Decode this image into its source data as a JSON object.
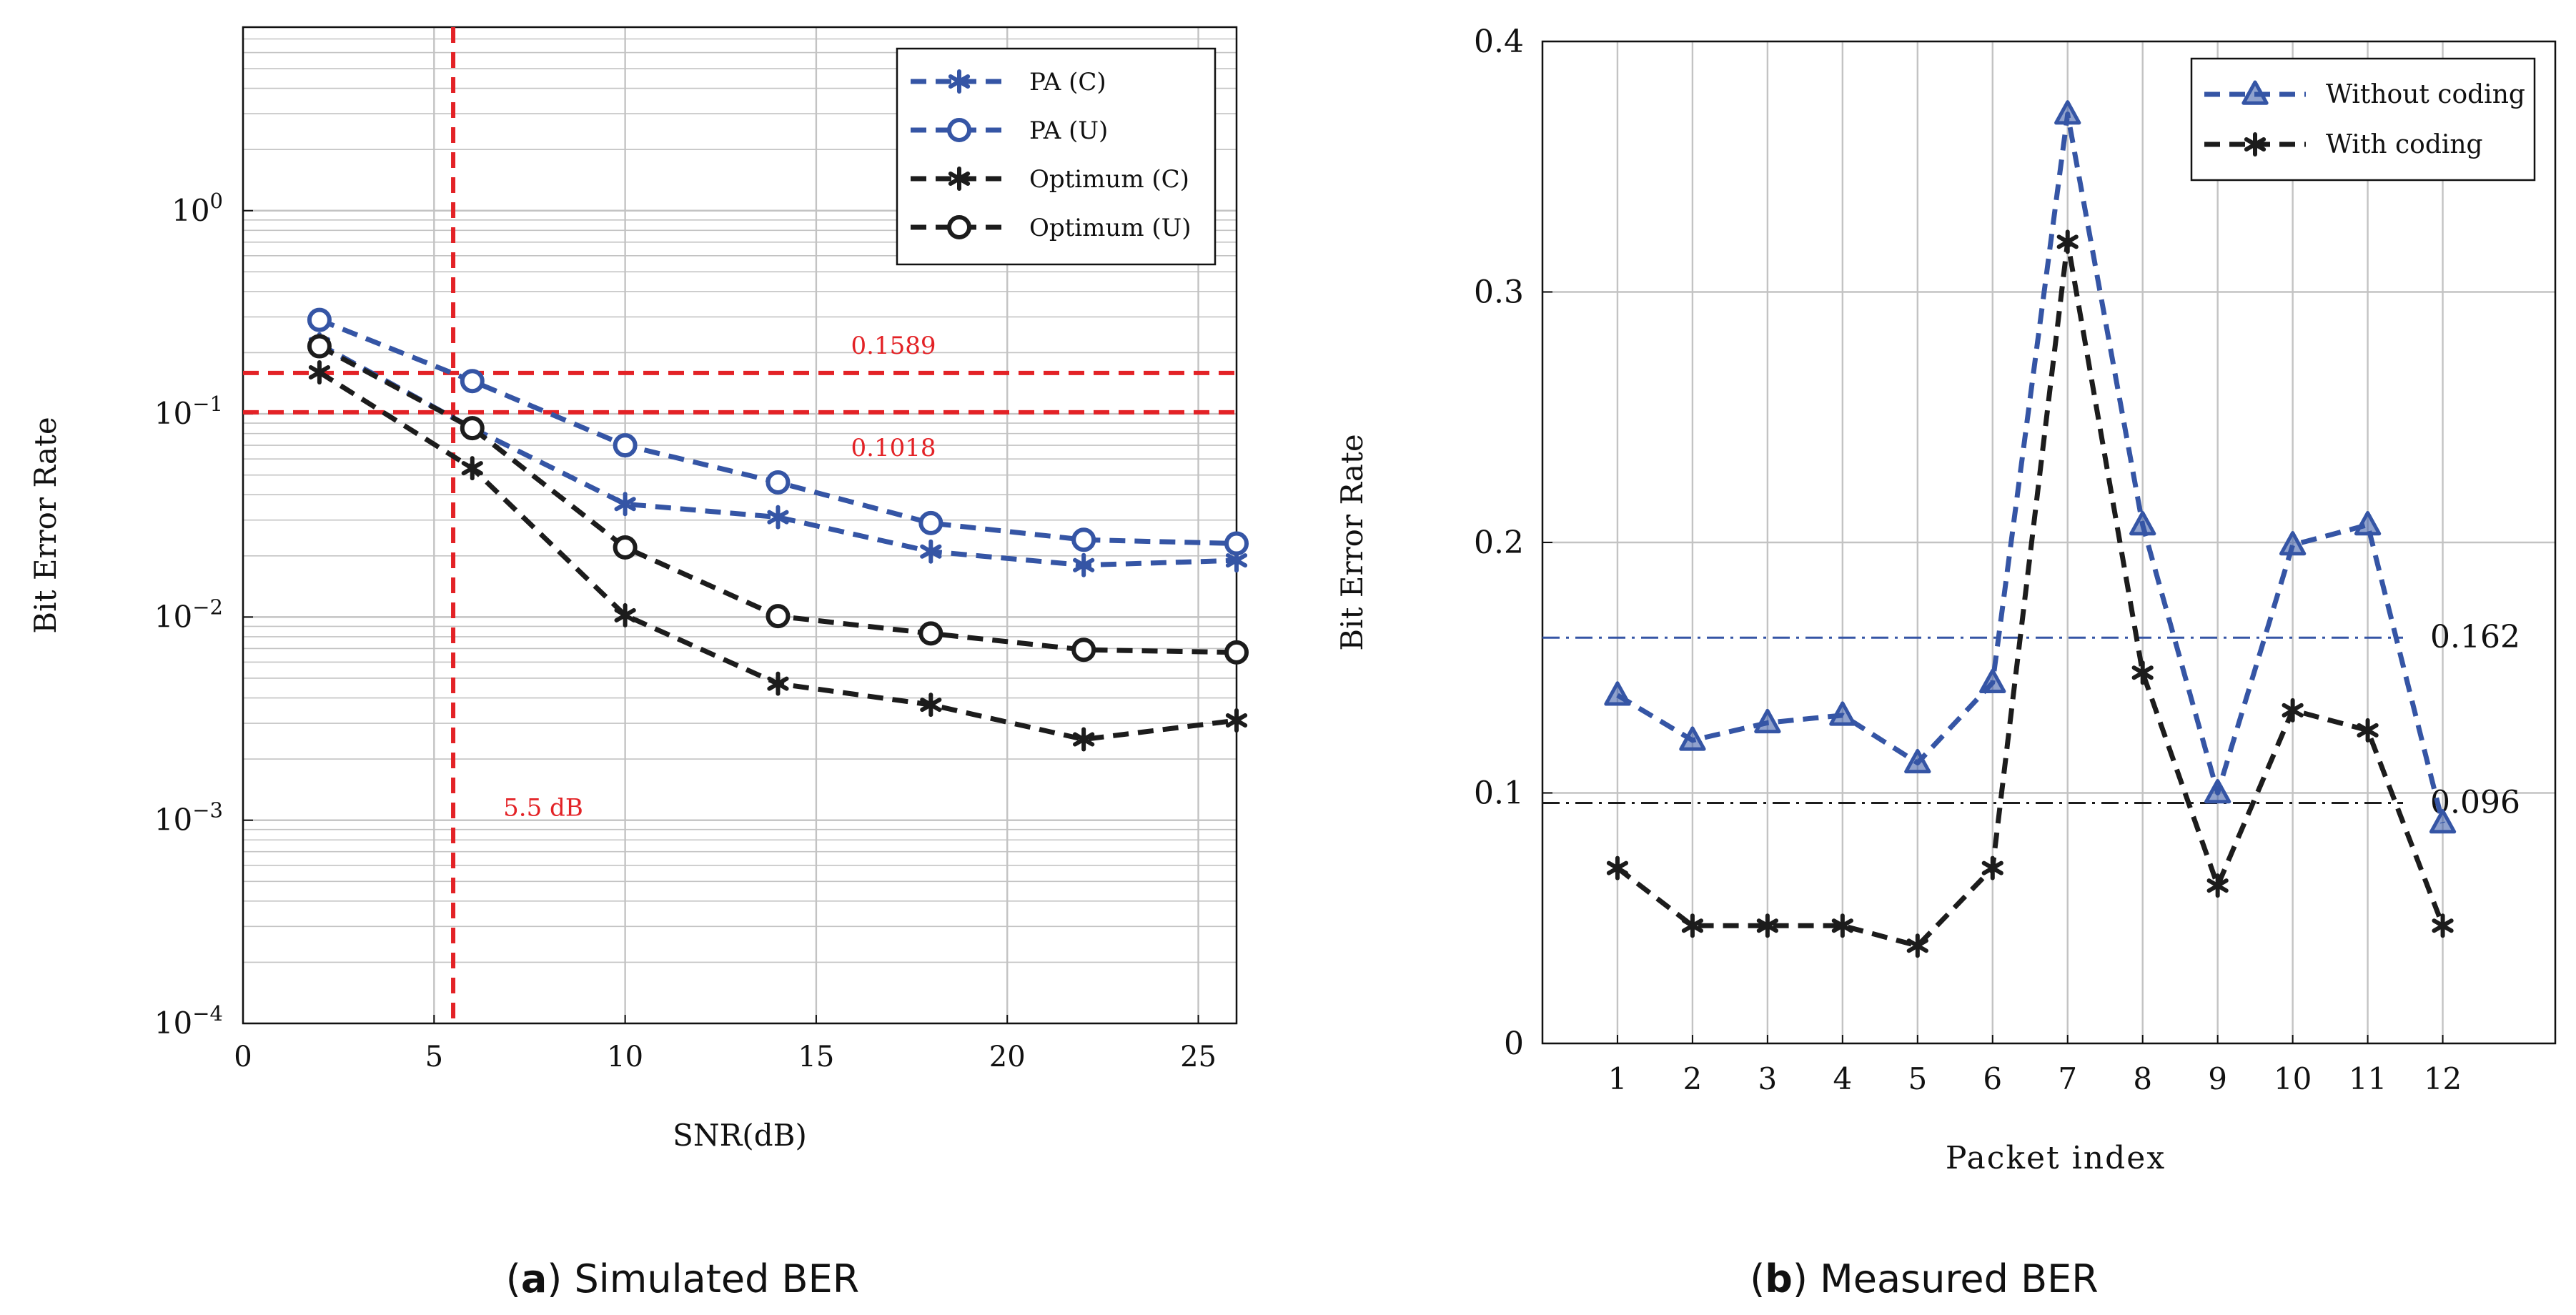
{
  "colors": {
    "blue": "#3555a5",
    "black": "#1c1c1c",
    "red": "#e32226",
    "grid": "#c3c3c3",
    "text": "#111111"
  },
  "charts": [
    {
      "caption": {
        "letter": "a",
        "text": " Simulated BER"
      },
      "chart_data": {
        "type": "line",
        "title": "",
        "xlabel": "SNR(dB)",
        "ylabel": "Bit Error Rate",
        "yscale": "log",
        "xlim": [
          0,
          26
        ],
        "ylim": [
          0.0001,
          8
        ],
        "xticks": [
          0,
          5,
          10,
          15,
          20,
          25
        ],
        "yticks": [
          {
            "value": 0.0001,
            "base": "10",
            "exp": "−4"
          },
          {
            "value": 0.001,
            "base": "10",
            "exp": "−3"
          },
          {
            "value": 0.01,
            "base": "10",
            "exp": "−2"
          },
          {
            "value": 0.1,
            "base": "10",
            "exp": "−1"
          },
          {
            "value": 1,
            "base": "10",
            "exp": "0"
          }
        ],
        "grid": true,
        "legend_position": "top-right",
        "series": [
          {
            "name": "PA (C)",
            "color": "blue",
            "marker": "asterisk",
            "x": [
              2,
              6,
              10,
              14,
              18,
              22,
              26
            ],
            "y": [
              0.22,
              0.085,
              0.036,
              0.031,
              0.021,
              0.018,
              0.019
            ]
          },
          {
            "name": "PA (U)",
            "color": "blue",
            "marker": "circle",
            "x": [
              2,
              6,
              10,
              14,
              18,
              22,
              26
            ],
            "y": [
              0.29,
              0.145,
              0.07,
              0.046,
              0.029,
              0.024,
              0.023
            ]
          },
          {
            "name": "Optimum (C)",
            "color": "black",
            "marker": "asterisk",
            "x": [
              2,
              6,
              10,
              14,
              18,
              22,
              26
            ],
            "y": [
              0.16,
              0.054,
              0.0102,
              0.0047,
              0.0037,
              0.0025,
              0.0031
            ]
          },
          {
            "name": "Optimum (U)",
            "color": "black",
            "marker": "circle",
            "x": [
              2,
              6,
              10,
              14,
              18,
              22,
              26
            ],
            "y": [
              0.215,
              0.085,
              0.022,
              0.0101,
              0.0083,
              0.0069,
              0.0067
            ]
          }
        ],
        "reference_lines": [
          {
            "orientation": "horizontal",
            "value": 0.1589,
            "label": "0.1589",
            "label_side": "above",
            "color": "red"
          },
          {
            "orientation": "horizontal",
            "value": 0.1018,
            "label": "0.1018",
            "label_side": "below",
            "color": "red"
          },
          {
            "orientation": "vertical",
            "value": 5.5,
            "label": "5.5 dB",
            "label_at": 0.00105,
            "color": "red"
          }
        ]
      }
    },
    {
      "caption": {
        "letter": "b",
        "text": " Measured BER"
      },
      "chart_data": {
        "type": "line",
        "title": "",
        "xlabel": "Packet index",
        "ylabel": "Bit Error Rate",
        "yscale": "linear",
        "xlim": [
          0,
          13.5
        ],
        "ylim": [
          0,
          0.4
        ],
        "xticks": [
          1,
          2,
          3,
          4,
          5,
          6,
          7,
          8,
          9,
          10,
          11,
          12
        ],
        "yticks": [
          {
            "value": 0,
            "label": "0"
          },
          {
            "value": 0.1,
            "label": "0.1"
          },
          {
            "value": 0.2,
            "label": "0.2"
          },
          {
            "value": 0.3,
            "label": "0.3"
          },
          {
            "value": 0.4,
            "label": "0.4"
          }
        ],
        "grid": true,
        "legend_position": "top-right",
        "series": [
          {
            "name": "Without coding",
            "color": "blue",
            "marker": "triangle",
            "x": [
              1,
              2,
              3,
              4,
              5,
              6,
              7,
              8,
              9,
              10,
              11,
              12
            ],
            "y": [
              0.139,
              0.121,
              0.128,
              0.131,
              0.112,
              0.144,
              0.371,
              0.207,
              0.1,
              0.199,
              0.207,
              0.088
            ]
          },
          {
            "name": "With coding",
            "color": "black",
            "marker": "asterisk",
            "x": [
              1,
              2,
              3,
              4,
              5,
              6,
              7,
              8,
              9,
              10,
              11,
              12
            ],
            "y": [
              0.07,
              0.047,
              0.047,
              0.047,
              0.039,
              0.07,
              0.32,
              0.148,
              0.063,
              0.133,
              0.125,
              0.047
            ]
          }
        ],
        "reference_lines": [
          {
            "orientation": "horizontal",
            "value": 0.162,
            "label": "0.162",
            "color": "blue",
            "style": "dashdot"
          },
          {
            "orientation": "horizontal",
            "value": 0.096,
            "label": "0.096",
            "color": "black",
            "style": "dashdot"
          }
        ]
      }
    }
  ]
}
